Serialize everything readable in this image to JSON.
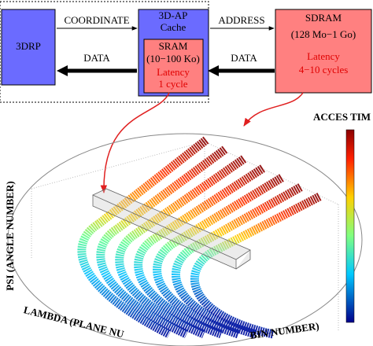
{
  "blocks": {
    "drp": {
      "label": "3DRP"
    },
    "cache": {
      "title": "3D-AP",
      "subtitle": "Cache",
      "sram": {
        "title": "SRAM",
        "size": "(10−100 Ko)",
        "latency": "Latency",
        "cycles": "1 cycle"
      }
    },
    "sdram": {
      "title": "SDRAM",
      "size": "(128 Mo−1 Go)",
      "latency": "Latency",
      "cycles": "4−10 cycles"
    }
  },
  "arrows": {
    "coordinate": "COORDINATE",
    "address": "ADDRESS",
    "data_left": "DATA",
    "data_right": "DATA"
  },
  "plot": {
    "colorbar_title": "ACCES TIM",
    "y_axis_label": "PSI (ANGLE NUMBER)",
    "x_axis_label": "LAMBDA (PLANE NU",
    "z_axis_label": "BIN NUMBER)"
  }
}
